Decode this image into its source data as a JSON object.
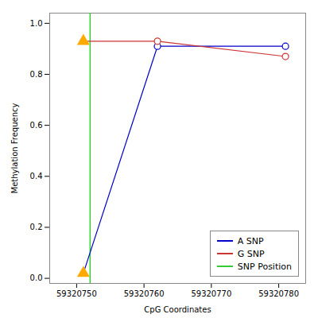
{
  "chart_data": {
    "type": "line",
    "xlabel": "CpG Coordinates",
    "ylabel": "Methylation Frequency",
    "x": [
      59320751,
      59320762,
      59320781
    ],
    "series": [
      {
        "name": "A SNP",
        "color": "#0000cc",
        "values": [
          0.02,
          0.91,
          0.91
        ],
        "marker": "circle",
        "colors": [
          "#ffaa00",
          "#0000cc",
          "#0000cc"
        ]
      },
      {
        "name": "G SNP",
        "color": "#cc3333",
        "values": [
          0.93,
          0.93,
          0.87
        ],
        "marker": "circle",
        "colors": [
          "#ffaa00",
          "#cc3333",
          "#cc3333"
        ]
      }
    ],
    "vline": {
      "name": "SNP Position",
      "x": 59320752,
      "color": "#33cc33"
    },
    "xlim": [
      59320746,
      59320784
    ],
    "xticks": [
      59320750,
      59320760,
      59320770,
      59320780
    ],
    "ylim": [
      -0.02,
      1.04
    ],
    "yticks": [
      {
        "value": 0.0,
        "label": "0.0"
      },
      0.2,
      0.4,
      0.6,
      0.8,
      {
        "value": 1.0,
        "label": "1.0"
      }
    ],
    "grid": false,
    "legend": "lower right"
  }
}
